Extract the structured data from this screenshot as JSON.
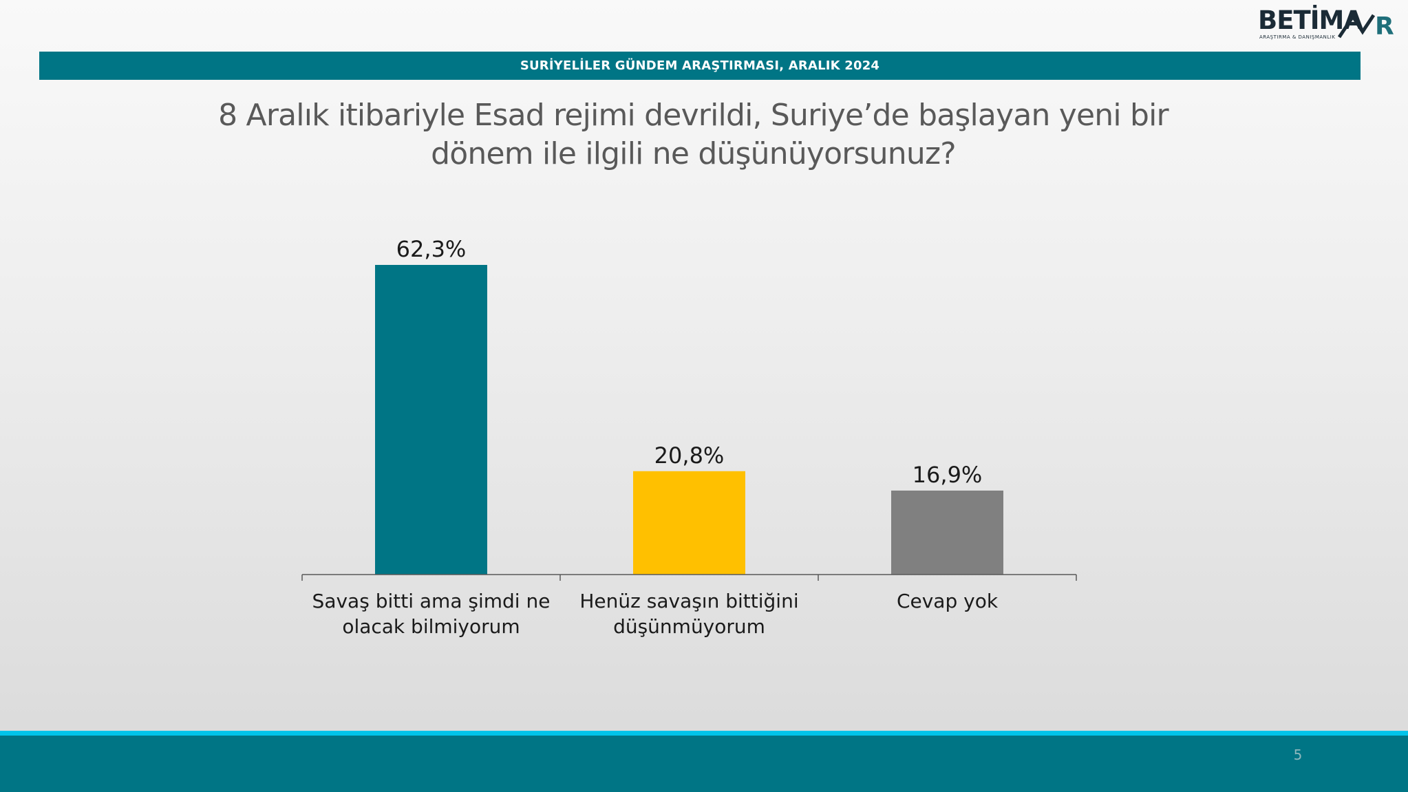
{
  "logo": {
    "name": "BETİMAR",
    "word": "BETİMA",
    "last_letter": "R",
    "tagline": "ARAŞTIRMA & DANIŞMANLIK"
  },
  "header": {
    "band_title": "SURİYELİLER GÜNDEM ARAŞTIRMASI, ARALIK 2024"
  },
  "question": {
    "line1": "8 Aralık itibariyle Esad rejimi devrildi, Suriye’de başlayan yeni bir",
    "line2": "dönem ile ilgili ne düşünüyorsunuz?"
  },
  "colors": {
    "teal": "#007585",
    "yellow": "#FFC000",
    "gray": "#808080",
    "accent_line": "#00C4EA"
  },
  "chart_data": {
    "type": "bar",
    "categories": [
      [
        "Savaş bitti ama şimdi ne",
        "olacak bilmiyorum"
      ],
      [
        "Henüz savaşın bittiğini",
        "düşünmüyorum"
      ],
      [
        "Cevap yok"
      ]
    ],
    "values": [
      62.3,
      20.8,
      16.9
    ],
    "value_labels": [
      "62,3%",
      "20,8%",
      "16,9%"
    ],
    "bar_colors": [
      "#007585",
      "#FFC000",
      "#808080"
    ],
    "ylim": [
      0,
      62.3
    ],
    "grid": false,
    "legend": "none"
  },
  "footer": {
    "page_number": "5"
  }
}
